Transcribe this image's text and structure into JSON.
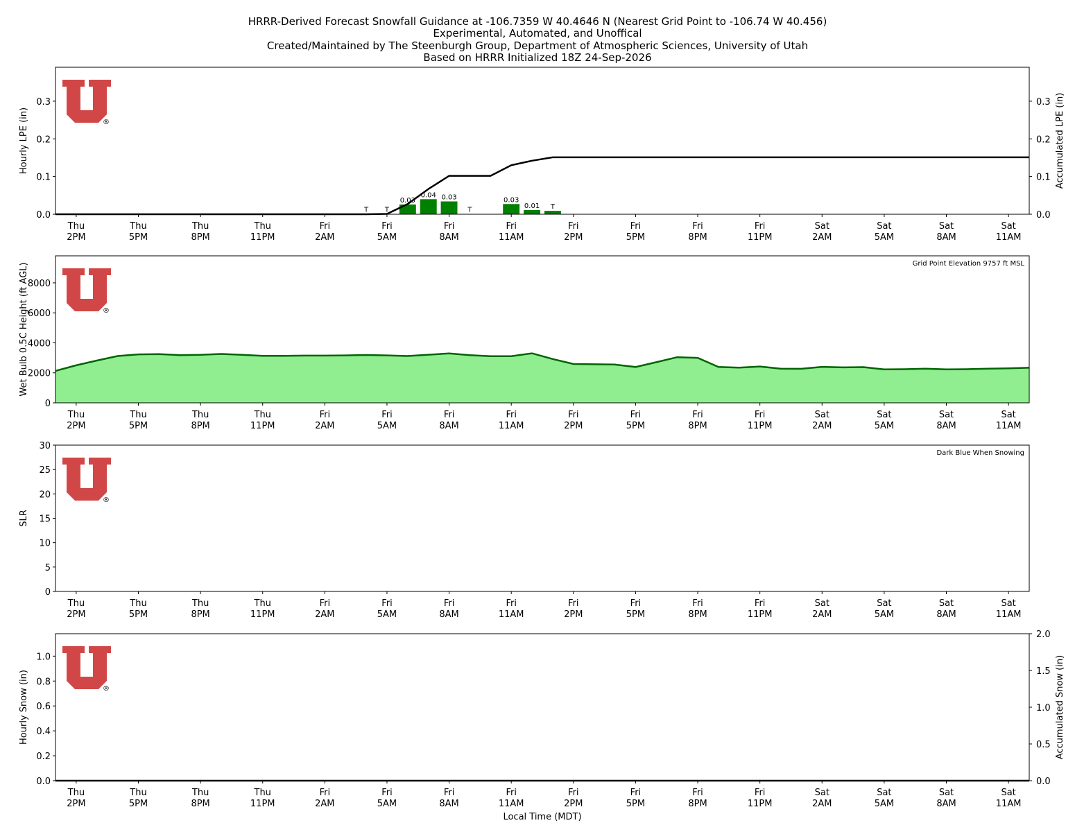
{
  "header": {
    "title_lines": [
      "HRRR-Derived Forecast Snowfall Guidance at -106.7359 W 40.4646 N (Nearest Grid Point to -106.74 W 40.456)",
      "Experimental, Automated, and Unoffical",
      "Created/Maintained by The Steenburgh Group, Department of Atmospheric Sciences, University of Utah",
      "Based on HRRR Initialized 18Z 24-Sep-2026"
    ]
  },
  "logo": {
    "icon": "university-of-utah-u-logo",
    "color": "#cc3333"
  },
  "time_axis": {
    "xlabel": "Local Time (MDT)",
    "hours": 48,
    "tick_hours": [
      0,
      3,
      6,
      9,
      12,
      15,
      18,
      21,
      24,
      27,
      30,
      33,
      36,
      39,
      42,
      45
    ],
    "tick_labels": [
      [
        "Thu",
        "2PM"
      ],
      [
        "Thu",
        "5PM"
      ],
      [
        "Thu",
        "8PM"
      ],
      [
        "Thu",
        "11PM"
      ],
      [
        "Fri",
        "2AM"
      ],
      [
        "Fri",
        "5AM"
      ],
      [
        "Fri",
        "8AM"
      ],
      [
        "Fri",
        "11AM"
      ],
      [
        "Fri",
        "2PM"
      ],
      [
        "Fri",
        "5PM"
      ],
      [
        "Fri",
        "8PM"
      ],
      [
        "Fri",
        "11PM"
      ],
      [
        "Sat",
        "2AM"
      ],
      [
        "Sat",
        "5AM"
      ],
      [
        "Sat",
        "8AM"
      ],
      [
        "Sat",
        "11AM"
      ]
    ],
    "xlim": [
      -1,
      46
    ]
  },
  "chart_data": [
    {
      "type": "bar",
      "panel": "lpe",
      "ylabel": "Hourly LPE (in)",
      "ylabel_right": "Accumulated LPE (in)",
      "ylim": [
        0,
        0.39
      ],
      "yticks": [
        0.0,
        0.1,
        0.2,
        0.3
      ],
      "ytick_labels": [
        "0.0",
        "0.1",
        "0.2",
        "0.3"
      ],
      "bar_color": "#008000",
      "bars": [
        {
          "x": 14,
          "value": 0.0005,
          "label": "T"
        },
        {
          "x": 15,
          "value": 0.001,
          "label": "T"
        },
        {
          "x": 16,
          "value": 0.026,
          "label": "0.03"
        },
        {
          "x": 17,
          "value": 0.04,
          "label": "0.04"
        },
        {
          "x": 18,
          "value": 0.034,
          "label": "0.03"
        },
        {
          "x": 19,
          "value": 0.0005,
          "label": "T"
        },
        {
          "x": 21,
          "value": 0.027,
          "label": "0.03"
        },
        {
          "x": 22,
          "value": 0.011,
          "label": "0.01"
        },
        {
          "x": 23,
          "value": 0.009,
          "label": "T"
        }
      ],
      "accumulated": {
        "color": "#000000",
        "x": [
          -1,
          14,
          15,
          16,
          17,
          18,
          19,
          20,
          21,
          22,
          23,
          46
        ],
        "y": [
          0,
          0,
          0.001,
          0.027,
          0.067,
          0.102,
          0.102,
          0.102,
          0.13,
          0.142,
          0.151,
          0.151
        ]
      }
    },
    {
      "type": "area",
      "panel": "wetbulb",
      "ylabel": "Wet Bulb 0.5C Height (ft AGL)",
      "ylim": [
        0,
        9800
      ],
      "yticks": [
        0,
        2000,
        4000,
        6000,
        8000
      ],
      "ytick_labels": [
        "0",
        "2000",
        "4000",
        "6000",
        "8000"
      ],
      "annotation": "Grid Point Elevation 9757 ft MSL",
      "fill_color": "#90ee90",
      "line_color": "#006400",
      "x": [
        -1,
        0,
        1,
        2,
        3,
        4,
        5,
        6,
        7,
        8,
        9,
        10,
        11,
        12,
        13,
        14,
        15,
        16,
        17,
        18,
        19,
        20,
        21,
        22,
        23,
        24,
        25,
        26,
        27,
        28,
        29,
        30,
        31,
        32,
        33,
        34,
        35,
        36,
        37,
        38,
        39,
        40,
        41,
        42,
        43,
        44,
        45,
        46
      ],
      "y": [
        2130,
        2500,
        2820,
        3120,
        3230,
        3250,
        3180,
        3200,
        3260,
        3200,
        3130,
        3130,
        3150,
        3150,
        3160,
        3190,
        3160,
        3120,
        3210,
        3290,
        3180,
        3110,
        3110,
        3300,
        2920,
        2590,
        2570,
        2550,
        2390,
        2710,
        3040,
        3000,
        2390,
        2350,
        2420,
        2280,
        2270,
        2400,
        2360,
        2380,
        2230,
        2240,
        2280,
        2230,
        2240,
        2280,
        2300,
        2340
      ]
    },
    {
      "type": "bar",
      "panel": "slr",
      "ylabel": "SLR",
      "ylim": [
        0,
        30
      ],
      "yticks": [
        0,
        5,
        10,
        15,
        20,
        25,
        30
      ],
      "ytick_labels": [
        "0",
        "5",
        "10",
        "15",
        "20",
        "25",
        "30"
      ],
      "annotation": "Dark Blue When Snowing",
      "bars": []
    },
    {
      "type": "bar",
      "panel": "snow",
      "ylabel": "Hourly Snow (in)",
      "ylabel_right": "Accumulated Snow (in)",
      "ylim": [
        0,
        1.18
      ],
      "yticks": [
        0.0,
        0.2,
        0.4,
        0.6,
        0.8,
        1.0
      ],
      "ytick_labels": [
        "0.0",
        "0.2",
        "0.4",
        "0.6",
        "0.8",
        "1.0"
      ],
      "ylim_right": [
        0,
        2.0
      ],
      "yticks_right": [
        0.0,
        0.5,
        1.0,
        1.5,
        2.0
      ],
      "ytick_labels_right": [
        "0.0",
        "0.5",
        "1.0",
        "1.5",
        "2.0"
      ],
      "bars": [],
      "accumulated": {
        "color": "#000000",
        "x": [
          -1,
          46
        ],
        "y": [
          0,
          0
        ]
      }
    }
  ]
}
